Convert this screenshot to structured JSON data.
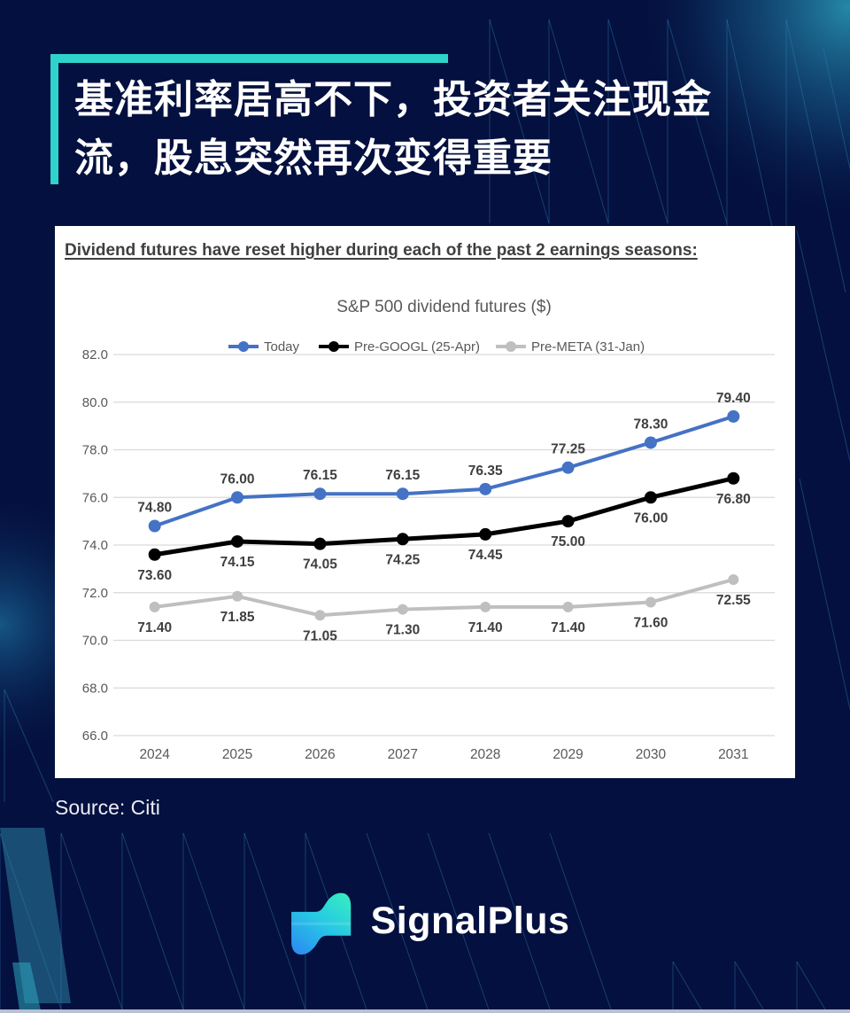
{
  "page": {
    "title_lines": [
      "基准利率居高不下，投资者关注现金",
      "流，股息突然再次变得重要"
    ],
    "source": "Source: Citi",
    "brand": "SignalPlus"
  },
  "colors": {
    "background_navy": "#04103F",
    "accent_teal": "#2ED3CC",
    "card_white": "#FFFFFF",
    "heading_text": "#3F3F3F",
    "axis_text": "#595959",
    "gridline": "#D9D9D9",
    "pattern_line": "#2E86B8",
    "bottom_strip": "#B7C1D2",
    "logo_gradient_start": "#35EBC2",
    "logo_gradient_end": "#2B8FF0"
  },
  "card": {
    "heading": "Dividend futures have reset higher during each of the past 2 earnings seasons:"
  },
  "chart_data": {
    "type": "line",
    "title": "S&P 500 dividend futures ($)",
    "categories": [
      "2024",
      "2025",
      "2026",
      "2027",
      "2028",
      "2029",
      "2030",
      "2031"
    ],
    "series": [
      {
        "name": "Today",
        "color": "#4472C4",
        "label_position": "above",
        "values": [
          74.8,
          76.0,
          76.15,
          76.15,
          76.35,
          77.25,
          78.3,
          79.4
        ]
      },
      {
        "name": "Pre-GOOGL (25-Apr)",
        "color": "#000000",
        "label_position": "below",
        "values": [
          73.6,
          74.15,
          74.05,
          74.25,
          74.45,
          75.0,
          76.0,
          76.8
        ]
      },
      {
        "name": "Pre-META (31-Jan)",
        "color": "#BFBFBF",
        "label_position": "below",
        "values": [
          71.4,
          71.85,
          71.05,
          71.3,
          71.4,
          71.4,
          71.6,
          72.55
        ]
      }
    ],
    "ylim": [
      66,
      82
    ],
    "y_tick_step": 2,
    "y_tick_format": "fixed1",
    "value_label_format": "fixed2",
    "grid": "horizontal",
    "legend_position": "top",
    "xlabel": "",
    "ylabel": ""
  }
}
